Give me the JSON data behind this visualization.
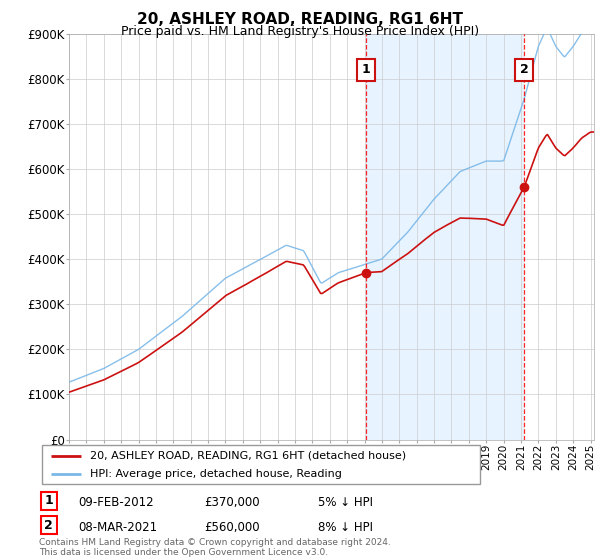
{
  "title": "20, ASHLEY ROAD, READING, RG1 6HT",
  "subtitle": "Price paid vs. HM Land Registry's House Price Index (HPI)",
  "ylabel_ticks": [
    "£0",
    "£100K",
    "£200K",
    "£300K",
    "£400K",
    "£500K",
    "£600K",
    "£700K",
    "£800K",
    "£900K"
  ],
  "ylim": [
    0,
    900000
  ],
  "xlim_start": 1995.0,
  "xlim_end": 2025.2,
  "purchase1_x": 2012.08,
  "purchase1_price": 370000,
  "purchase2_x": 2021.17,
  "purchase2_price": 560000,
  "legend_entries": [
    {
      "label": "20, ASHLEY ROAD, READING, RG1 6HT (detached house)",
      "color": "#cc1111",
      "lw": 1.5
    },
    {
      "label": "HPI: Average price, detached house, Reading",
      "color": "#7ab8e8",
      "lw": 1.5
    }
  ],
  "footer": "Contains HM Land Registry data © Crown copyright and database right 2024.\nThis data is licensed under the Open Government Licence v3.0.",
  "table_rows": [
    [
      "1",
      "09-FEB-2012",
      "£370,000",
      "5% ↓ HPI"
    ],
    [
      "2",
      "08-MAR-2021",
      "£560,000",
      "8% ↓ HPI"
    ]
  ],
  "background_color": "#ffffff",
  "grid_color": "#cccccc",
  "hpi_color": "#7ab8e8",
  "price_color": "#cc1111",
  "shade_color": "#ddeeff"
}
